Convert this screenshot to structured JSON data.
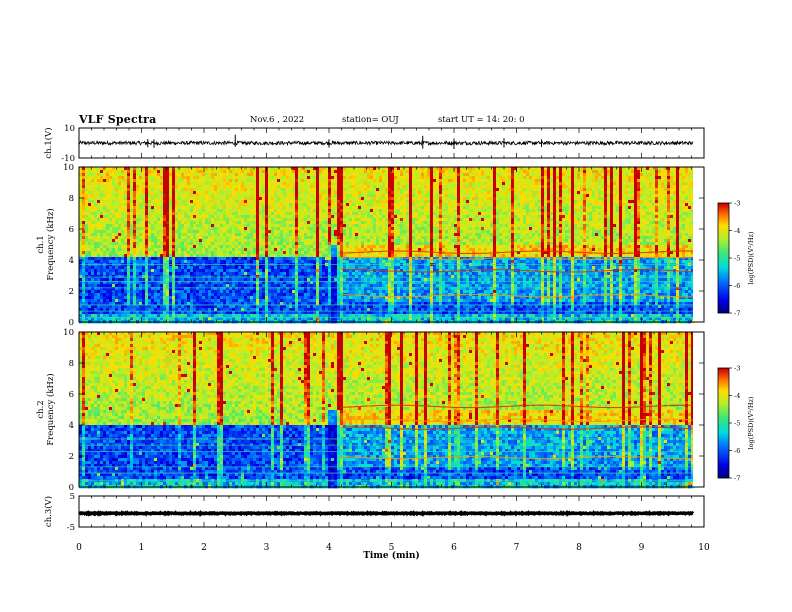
{
  "header": {
    "title": "VLF Spectra",
    "date": "Nov.6  , 2022",
    "station": "station= OUJ",
    "start_ut": "start  UT  =   14: 20: 0"
  },
  "chart_data": [
    {
      "type": "line",
      "panel": "ch1-waveform",
      "ylabel": "ch.1(V)",
      "ylim": [
        -10,
        10
      ],
      "yticks": [
        "10",
        "-10"
      ],
      "baseline_value": 0,
      "noise_amplitude": 1.2
    },
    {
      "type": "heatmap",
      "panel": "ch1-spectrogram",
      "ylabel": "Frequency (kHz)",
      "channel_label": "ch.1",
      "ylim": [
        0,
        10
      ],
      "yticks": [
        0,
        2,
        4,
        6,
        8,
        10
      ],
      "xlim": [
        0,
        9.8
      ],
      "colorbar": {
        "label": "log(PSD)(V²/Hz)",
        "range": [
          -7,
          -3
        ],
        "ticks": [
          "-3",
          "-4",
          "-5",
          "-6",
          "-7"
        ]
      },
      "features": {
        "quiet_band_khz": [
          0.5,
          4.2
        ],
        "strong_band_after_min": 4.2,
        "emission_lines_khz": [
          4.5,
          4.1,
          3.3,
          1.7
        ],
        "noise_lines_khz": [
          0.3,
          0.7,
          1.1,
          2.2,
          2.6,
          2.9,
          3.7
        ]
      }
    },
    {
      "type": "heatmap",
      "panel": "ch2-spectrogram",
      "ylabel": "Frequency (kHz)",
      "channel_label": "ch.2",
      "ylim": [
        0,
        10
      ],
      "yticks": [
        0,
        2,
        4,
        6,
        8,
        10
      ],
      "xlim": [
        0,
        9.8
      ],
      "colorbar": {
        "label": "log(PSD)(V²/Hz)",
        "range": [
          -7,
          -3
        ],
        "ticks": [
          "-3",
          "-4",
          "-5",
          "-6",
          "-7"
        ]
      },
      "features": {
        "quiet_band_khz": [
          0.5,
          4.0
        ],
        "strong_band_after_min": 4.2,
        "emission_lines_khz": [
          5.2,
          4.3,
          3.8,
          1.9
        ],
        "noise_lines_khz": [
          0.4,
          0.9,
          1.3,
          2.3,
          2.7,
          3.1
        ]
      }
    },
    {
      "type": "line",
      "panel": "ch3-waveform",
      "ylabel": "ch.3(V)",
      "ylim": [
        -5,
        5
      ],
      "yticks": [
        "5",
        "-5"
      ],
      "baseline_value": -0.6,
      "noise_amplitude": 0.15
    }
  ],
  "x_axis": {
    "label": "Time (min)",
    "range": [
      0,
      10
    ],
    "ticks": [
      "0",
      "1",
      "2",
      "3",
      "4",
      "5",
      "6",
      "7",
      "8",
      "9",
      "10"
    ]
  }
}
